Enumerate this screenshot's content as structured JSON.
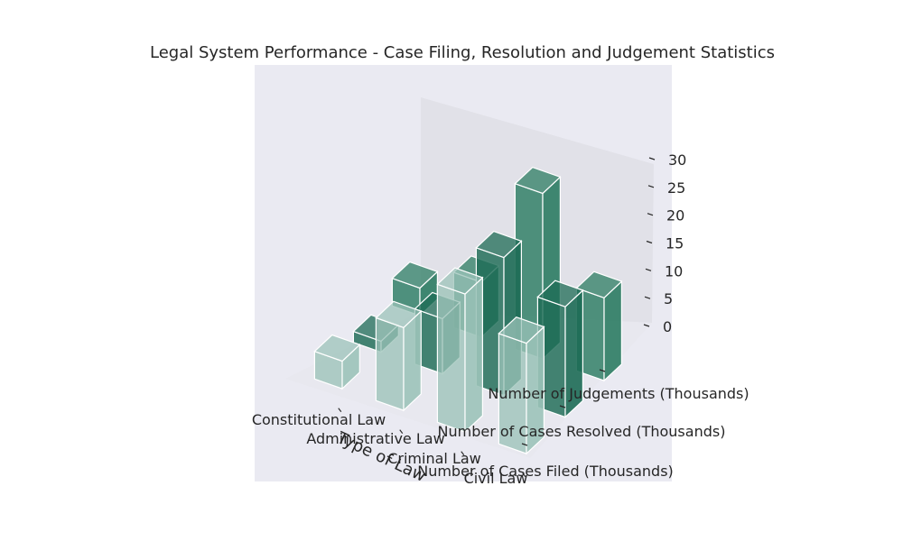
{
  "chart_data": {
    "type": "bar3d",
    "title": "Legal System Performance - Case Filing, Resolution and Judgement Statistics",
    "xlabel": "Type of Law",
    "ylabel": "",
    "zlabel": "",
    "categories": [
      "Constitutional Law",
      "Administrative Law",
      "Criminal Law",
      "Civil Law"
    ],
    "series": [
      {
        "name": "Number of Cases Filed (Thousands)",
        "values": [
          5,
          15,
          25,
          20
        ]
      },
      {
        "name": "Number of Cases Resolved (Thousands)",
        "values": [
          2,
          10,
          25,
          20
        ]
      },
      {
        "name": "Number of Judgements (Thousands)",
        "values": [
          5,
          10,
          30,
          15
        ]
      }
    ],
    "zlim": [
      0,
      30
    ],
    "zticks": [
      0,
      5,
      10,
      15,
      20,
      25,
      30
    ],
    "grid": true,
    "colors": {
      "series": [
        "#9cc3b9",
        "#1d6b55",
        "#2c7c63"
      ],
      "edge": "#ffffff",
      "pane_left": "#eaeaf2",
      "pane_back": "#e1e1e8",
      "floor": "#e8e8ef",
      "background": "#eaeaf2"
    }
  }
}
